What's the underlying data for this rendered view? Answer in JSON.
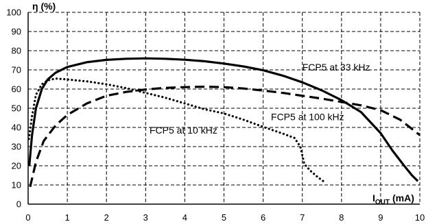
{
  "chart_data": {
    "type": "line",
    "ylabel": "η (%)",
    "xlabel_main": "I",
    "xlabel_sub": "OUT",
    "xlabel_unit": "(mA)",
    "xlim": [
      0,
      10
    ],
    "ylim": [
      0,
      100
    ],
    "x_ticks": [
      0,
      1,
      2,
      3,
      4,
      5,
      6,
      7,
      8,
      9,
      10
    ],
    "y_ticks": [
      0,
      10,
      20,
      30,
      40,
      50,
      60,
      70,
      80,
      90,
      100
    ],
    "grid": true,
    "series": [
      {
        "name": "FCP5 at 33 kHz",
        "style": "solid",
        "x": [
          0.03,
          0.1,
          0.2,
          0.35,
          0.5,
          0.7,
          1.0,
          1.5,
          2.0,
          2.5,
          3.0,
          3.5,
          4.0,
          4.5,
          5.0,
          5.5,
          6.0,
          6.5,
          7.0,
          7.5,
          8.0,
          8.5,
          9.0,
          9.3,
          9.6,
          9.8,
          9.95
        ],
        "y": [
          20,
          36,
          50,
          60,
          65,
          68.5,
          71.5,
          74,
          75.2,
          75.8,
          76,
          75.8,
          75.3,
          74.5,
          73.3,
          71.8,
          69.8,
          67,
          63.5,
          59.3,
          54.2,
          48,
          37,
          28,
          20,
          15,
          12
        ]
      },
      {
        "name": "FCP5 at 100 kHz",
        "style": "dashed",
        "x": [
          0.05,
          0.2,
          0.4,
          0.7,
          1.0,
          1.5,
          2.0,
          2.5,
          3.0,
          3.5,
          4.0,
          4.5,
          5.0,
          5.5,
          6.0,
          6.5,
          7.0,
          7.5,
          8.0,
          8.5,
          9.0,
          9.5,
          10.0
        ],
        "y": [
          9,
          22,
          33,
          41,
          46.5,
          52.5,
          56.5,
          58.5,
          59.8,
          60.6,
          61,
          61.2,
          61,
          60.3,
          59.2,
          58,
          56.5,
          55,
          53.3,
          51.5,
          49,
          44,
          36
        ]
      },
      {
        "name": "FCP5 at 10 kHz",
        "style": "dotted",
        "x": [
          0.02,
          0.1,
          0.2,
          0.35,
          0.5,
          0.7,
          1.0,
          1.5,
          2.0,
          2.5,
          3.0,
          3.5,
          4.0,
          4.5,
          5.0,
          5.5,
          6.0,
          6.5,
          6.8,
          6.95,
          7.05,
          7.2,
          7.4,
          7.6
        ],
        "y": [
          34,
          46,
          57,
          62.5,
          64.5,
          65.5,
          65,
          64,
          62.5,
          60.5,
          58,
          55.5,
          52.5,
          49.5,
          47.3,
          44,
          40.3,
          36.8,
          34.5,
          30,
          21,
          17.5,
          14,
          11
        ]
      }
    ],
    "annotations": [
      {
        "text": "FCP5 at 33 kHz",
        "x": 7.0,
        "y": 71.5
      },
      {
        "text": "FCP5 at 100 kHz",
        "x": 6.2,
        "y": 45.5
      },
      {
        "text": "FCP5 at 10 kHz",
        "x": 3.1,
        "y": 38.5
      }
    ]
  }
}
